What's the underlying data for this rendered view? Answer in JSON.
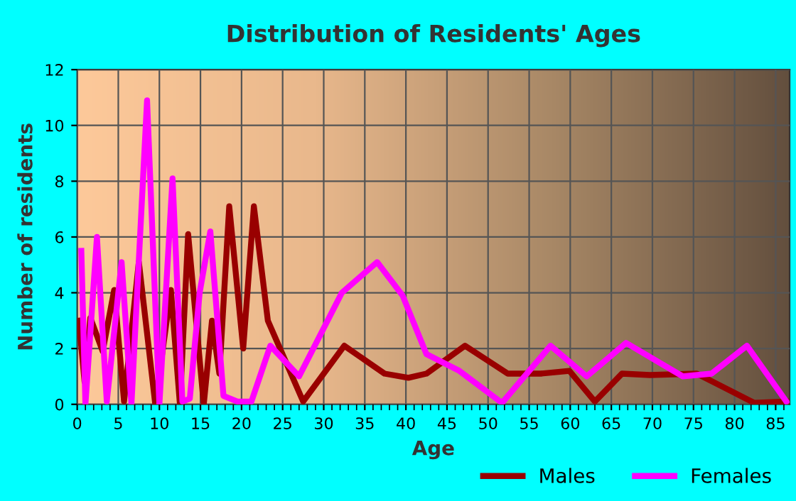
{
  "chart_data": {
    "type": "line",
    "title": "Distribution of Residents' Ages",
    "xlabel": "Age",
    "ylabel": "Number of residents",
    "xlim": [
      0,
      86.7
    ],
    "xticks": [
      0,
      5,
      10,
      15,
      20,
      25,
      30,
      35,
      40,
      45,
      50,
      55,
      60,
      65,
      70,
      75,
      80,
      85
    ],
    "ylim": [
      0,
      12
    ],
    "yticks": [
      0,
      2,
      4,
      6,
      8,
      10,
      12
    ],
    "grid": true,
    "legend": "bottom right",
    "marker": "none",
    "line_style": "solid",
    "series": [
      {
        "name": "Males",
        "color": "#990000",
        "x": [
          0.2,
          0.9,
          1.6,
          3.1,
          4.5,
          5.7,
          7.5,
          9.5,
          11.4,
          12.5,
          13.5,
          15.4,
          16.4,
          17.3,
          18.5,
          20.2,
          21.5,
          23.2,
          27.5,
          32.5,
          37.4,
          40.3,
          42.5,
          47.2,
          52.4,
          56.4,
          59.9,
          63,
          66.3,
          69.7,
          75.4,
          82.4,
          86.3
        ],
        "values": [
          3,
          0.8,
          3.1,
          1.9,
          4.1,
          0.1,
          5.1,
          0,
          4.1,
          0,
          6.1,
          0,
          3,
          1.1,
          7.1,
          2,
          7.1,
          3,
          0.1,
          2.1,
          1.1,
          0.95,
          1.1,
          2.1,
          1.1,
          1.1,
          1.2,
          0.1,
          1.1,
          1.05,
          1.1,
          0.05,
          0.1
        ]
      },
      {
        "name": "Females",
        "color": "#ff00ff",
        "x": [
          0.5,
          1,
          2.4,
          3.6,
          5.4,
          6.6,
          8.5,
          10,
          11.6,
          12.8,
          13.7,
          14.9,
          16.2,
          17.8,
          19.5,
          21.2,
          23.5,
          27,
          32.2,
          36.5,
          39.6,
          42.5,
          46.5,
          51.7,
          57.6,
          62,
          66.8,
          73.7,
          77.2,
          81.5,
          86.3
        ],
        "values": [
          5.5,
          0,
          6,
          0.1,
          5.1,
          0,
          10.9,
          0,
          8.1,
          0.1,
          0.2,
          4,
          6.2,
          0.3,
          0.1,
          0.1,
          2.1,
          1,
          4,
          5.1,
          3.9,
          1.8,
          1.2,
          0.05,
          2.1,
          1,
          2.2,
          1,
          1.1,
          2.1,
          0.1
        ]
      }
    ]
  }
}
